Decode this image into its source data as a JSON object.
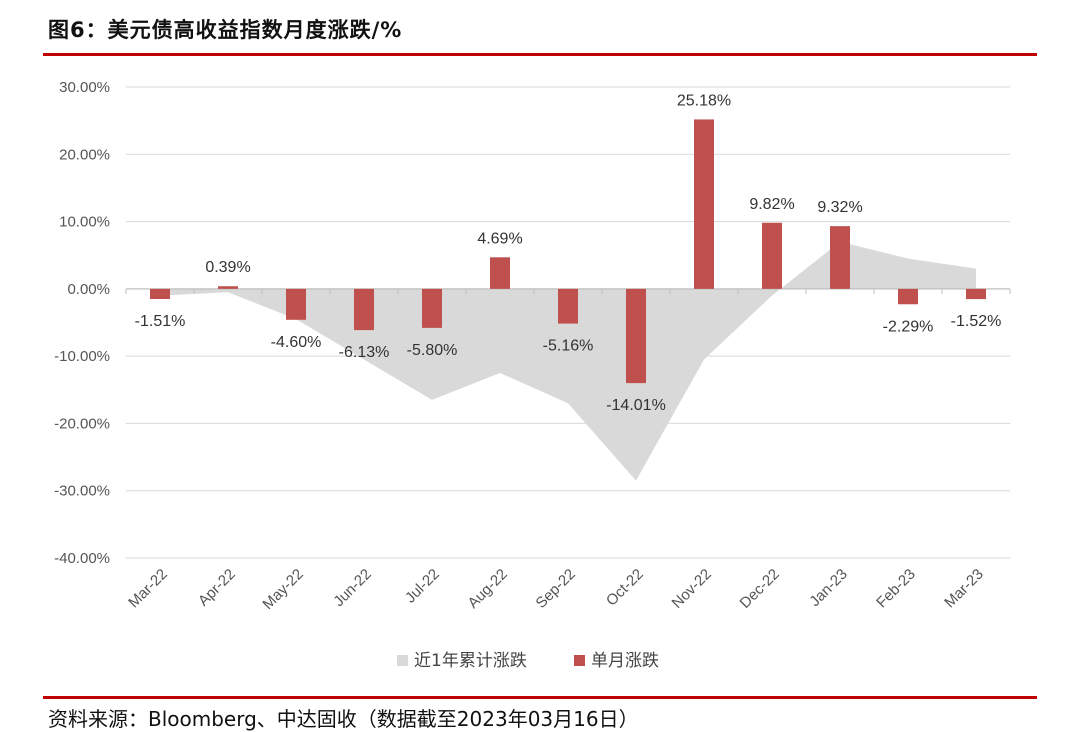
{
  "header": {
    "title": "图6：美元债高收益指数月度涨跌/%"
  },
  "footer": {
    "source": "资料来源：Bloomberg、中达固收（数据截至2023年03月16日）"
  },
  "colors": {
    "accent_rule": "#c00000",
    "bar": "#c0504d",
    "area": "#d9d9d9",
    "grid": "#d9d9d9",
    "axis": "#bfbfbf"
  },
  "chart_data": {
    "type": "bar",
    "categories": [
      "Mar-22",
      "Apr-22",
      "May-22",
      "Jun-22",
      "Jul-22",
      "Aug-22",
      "Sep-22",
      "Oct-22",
      "Nov-22",
      "Dec-22",
      "Jan-23",
      "Feb-23",
      "Mar-23"
    ],
    "series": [
      {
        "name": "近1年累计涨跌",
        "type": "area",
        "values": [
          -1.0,
          -0.5,
          -4.5,
          -10.5,
          -16.5,
          -12.5,
          -17.0,
          -28.5,
          -10.5,
          -1.0,
          7.0,
          4.5,
          3.0
        ]
      },
      {
        "name": "单月涨跌",
        "type": "bar",
        "values": [
          -1.51,
          0.39,
          -4.6,
          -6.13,
          -5.8,
          4.69,
          -5.16,
          -14.01,
          25.18,
          9.82,
          9.32,
          -2.29,
          -1.52
        ],
        "labels": [
          "-1.51%",
          "0.39%",
          "-4.60%",
          "-6.13%",
          "-5.80%",
          "4.69%",
          "-5.16%",
          "-14.01%",
          "25.18%",
          "9.82%",
          "9.32%",
          "-2.29%",
          "-1.52%"
        ]
      }
    ],
    "ylim": [
      -40,
      30
    ],
    "yticks": [
      30,
      20,
      10,
      0,
      -10,
      -20,
      -30,
      -40
    ],
    "ytick_labels": [
      "30.00%",
      "20.00%",
      "10.00%",
      "0.00%",
      "-10.00%",
      "-20.00%",
      "-30.00%",
      "-40.00%"
    ],
    "grid": true,
    "legend_position": "bottom"
  }
}
